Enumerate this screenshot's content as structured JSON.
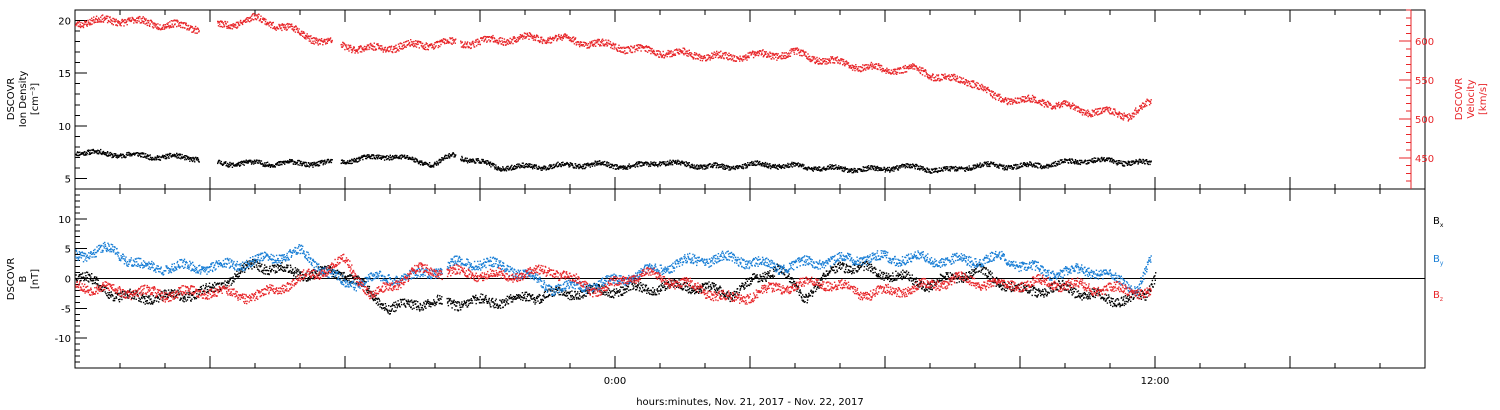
{
  "chart_data": {
    "type": "scatter",
    "xlabel": "hours:minutes, Nov. 21, 2017 - Nov. 22, 2017",
    "xticks": [
      {
        "hour": 24,
        "label": "0:00"
      },
      {
        "hour": 36,
        "label": "12:00"
      }
    ],
    "xlim_hours": [
      12,
      42
    ],
    "panels": [
      {
        "id": "plasma",
        "left_axis": {
          "label_lines": [
            "DSCOVR",
            "Ion Density",
            "[cm⁻³]"
          ],
          "ticks": [
            "5",
            "10",
            "15",
            "20"
          ],
          "ylim": [
            4,
            21
          ]
        },
        "right_axis": {
          "label_lines": [
            "DSCOVR",
            "Velocity",
            "[km/s]"
          ],
          "ticks": [
            "450",
            "500",
            "550",
            "600"
          ],
          "ylim": [
            410,
            640
          ],
          "color": "#e8262a"
        },
        "series": [
          {
            "id": "density",
            "color": "#000000",
            "x": [
              12.0,
              13.5,
              14.7,
              15.2,
              17.6,
              18.3,
              19.0,
              20.0,
              20.4,
              21.4,
              22.4,
              23.5,
              24.4,
              25.0,
              26.4,
              27.2,
              28.8,
              29.8,
              30.4,
              31.4,
              32.0,
              33.0,
              33.6,
              34.6,
              35.4,
              35.9
            ],
            "y": [
              7.6,
              7.2,
              7.0,
              6.5,
              6.5,
              6.9,
              7.2,
              6.4,
              7.3,
              6.1,
              6.2,
              6.4,
              6.2,
              6.6,
              6.1,
              6.4,
              6.0,
              5.9,
              6.2,
              5.8,
              6.3,
              6.2,
              6.4,
              6.8,
              6.6,
              6.5
            ]
          },
          {
            "id": "velocity",
            "color": "#e8262a",
            "x": [
              12.0,
              13.0,
              14.7,
              15.2,
              16.0,
              16.6,
              17.5,
              18.5,
              19.0,
              20.0,
              20.6,
              21.8,
              22.6,
              23.5,
              24.5,
              25.4,
              26.4,
              27.0,
              28.0,
              29.0,
              30.0,
              30.6,
              31.4,
              32.0,
              32.4,
              33.6,
              34.4,
              35.4,
              35.9
            ],
            "y": [
              625,
              628,
              618,
              620,
              630,
              620,
              600,
              590,
              593,
              598,
              598,
              604,
              605,
              598,
              590,
              585,
              580,
              582,
              585,
              572,
              564,
              565,
              552,
              548,
              528,
              522,
              512,
              506,
              522
            ]
          }
        ]
      },
      {
        "id": "magnetic",
        "left_axis": {
          "label_lines": [
            "DSCOVR",
            "B",
            "[nT]"
          ],
          "ticks": [
            "-10",
            "-5",
            "0",
            "5",
            "10"
          ],
          "ylim": [
            -15,
            15
          ]
        },
        "series": [
          {
            "id": "Bx",
            "name": "Bx",
            "color": "#000000",
            "x": [
              12.0,
              13.0,
              14.0,
              15.0,
              16.0,
              17.0,
              18.0,
              18.5,
              19.0,
              19.6,
              20.6,
              21.6,
              22.6,
              23.6,
              24.6,
              25.6,
              26.6,
              27.6,
              28.2,
              29.0,
              30.0,
              31.0,
              32.0,
              33.0,
              34.0,
              35.0,
              35.8,
              36.0
            ],
            "y": [
              1.0,
              -3.0,
              -3.0,
              -2.0,
              2.5,
              1.0,
              1.0,
              -2.0,
              -5.0,
              -4.0,
              -4.0,
              -3.5,
              -2.5,
              -2.0,
              -1.5,
              -1.0,
              -2.5,
              2.0,
              -3.0,
              2.5,
              1.0,
              -1.0,
              1.5,
              -2.0,
              -1.5,
              -3.5,
              -3.0,
              1.0
            ]
          },
          {
            "id": "By",
            "name": "By",
            "color": "#1a7fd6",
            "x": [
              12.0,
              12.8,
              13.5,
              15.0,
              16.0,
              17.0,
              18.0,
              18.6,
              19.6,
              20.6,
              21.6,
              22.6,
              23.6,
              24.6,
              25.6,
              26.6,
              27.6,
              28.6,
              29.6,
              30.6,
              31.6,
              32.6,
              33.6,
              34.6,
              35.6,
              35.9
            ],
            "y": [
              4.0,
              5.0,
              2.0,
              2.0,
              3.0,
              4.5,
              -1.0,
              0.0,
              0.5,
              3.0,
              2.0,
              -1.5,
              -1.0,
              1.0,
              3.0,
              3.5,
              2.0,
              3.0,
              3.5,
              3.5,
              3.0,
              3.5,
              1.0,
              1.5,
              -1.5,
              3.0
            ]
          },
          {
            "id": "Bz",
            "name": "Bz",
            "color": "#e8262a",
            "x": [
              12.0,
              13.0,
              14.0,
              15.0,
              16.0,
              17.0,
              18.0,
              18.6,
              19.6,
              20.6,
              21.6,
              22.6,
              23.6,
              24.6,
              25.6,
              26.6,
              27.6,
              28.6,
              29.6,
              30.6,
              31.6,
              32.6,
              33.6,
              34.6,
              35.6,
              35.9
            ],
            "y": [
              -1.0,
              -2.0,
              -2.5,
              -2.0,
              -3.0,
              0.0,
              3.0,
              -3.0,
              1.5,
              1.0,
              0.5,
              1.5,
              -2.0,
              1.0,
              -1.0,
              -3.5,
              -1.5,
              -0.5,
              -2.5,
              -1.5,
              0.0,
              -1.0,
              -0.5,
              -1.5,
              -2.0,
              -2.5
            ]
          }
        ],
        "legend": [
          {
            "letter": "B",
            "sub": "x",
            "color": "#000000"
          },
          {
            "letter": "B",
            "sub": "y",
            "color": "#1a7fd6"
          },
          {
            "letter": "B",
            "sub": "z",
            "color": "#e8262a"
          }
        ]
      }
    ]
  }
}
